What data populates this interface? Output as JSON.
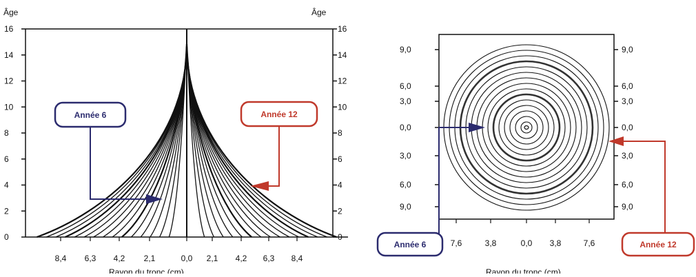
{
  "colors": {
    "background": "#ffffff",
    "axis": "#111111",
    "lines": "#111111",
    "year6": "#2b2b6e",
    "year12": "#c0392b"
  },
  "left_chart": {
    "ylabel_left": "Âge",
    "ylabel_right": "Âge",
    "xlabel": "Rayon du tronc (cm)",
    "y_ticks": [
      "0",
      "2",
      "4",
      "6",
      "8",
      "10",
      "12",
      "14",
      "16"
    ],
    "x_ticks": [
      "8,4",
      "6,3",
      "4,2",
      "2,1",
      "0,0",
      "2,1",
      "4,2",
      "6,3",
      "8,4"
    ],
    "callout_year6": "Année 6",
    "callout_year12": "Année 12"
  },
  "right_chart": {
    "xlabel": "Rayon du tronc (cm)",
    "y_ticks_left": [
      "9,0",
      "6,0",
      "3,0",
      "0,0",
      "3,0",
      "6,0",
      "9,0"
    ],
    "y_ticks_right": [
      "9,0",
      "6,0",
      "3,0",
      "0,0",
      "3,0",
      "6,0",
      "9,0"
    ],
    "x_ticks": [
      "7,6",
      "3,8",
      "0,0",
      "3,8",
      "7,6"
    ],
    "callout_year6": "Année 6",
    "callout_year12": "Année 12"
  },
  "chart_data": {
    "type": "line",
    "description_ref": "Tree-growth model: trunk radius profile per year (left) and growth rings cross-section (right)",
    "years": 15,
    "ring_count": 15,
    "highlight_years": [
      6,
      12
    ],
    "age_range": [
      0,
      16
    ],
    "radius_range_cm": [
      -9.5,
      9.5
    ]
  }
}
